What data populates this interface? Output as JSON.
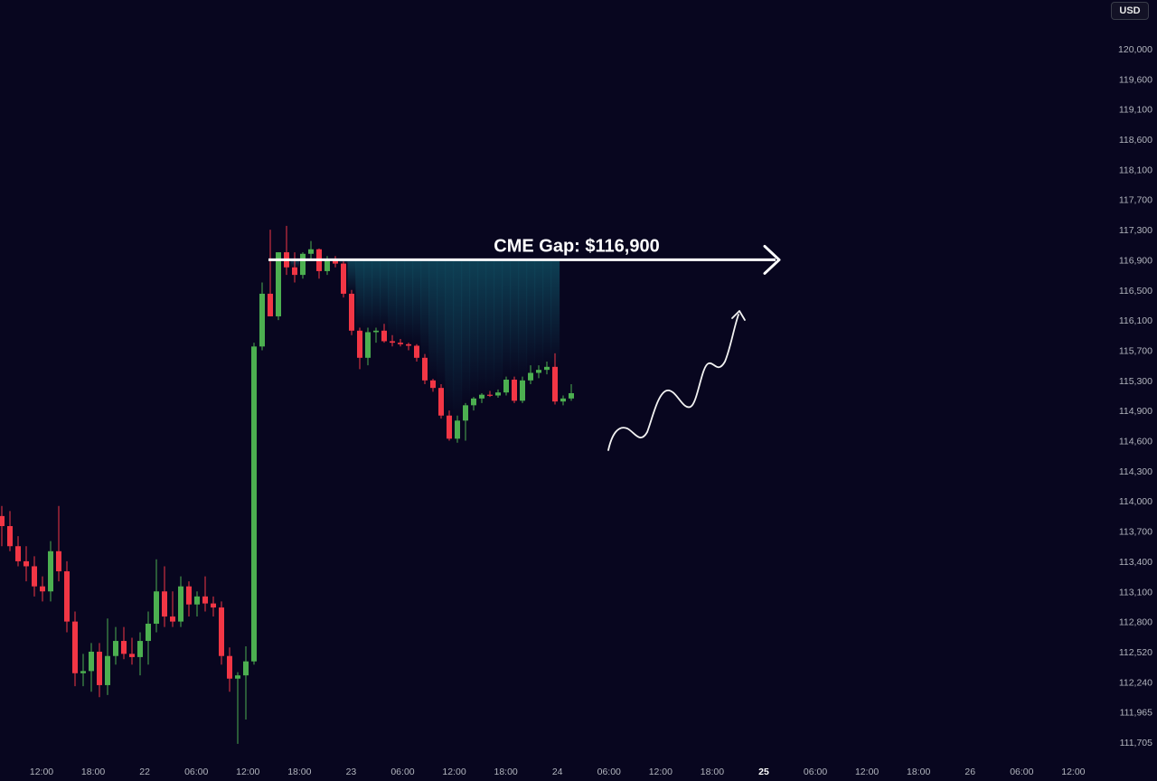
{
  "currency": "USD",
  "colors": {
    "background": "#08061f",
    "bullish": "#4caf50",
    "bearish": "#f23645",
    "axis_text": "#b2b5be",
    "annotation": "#ffffff",
    "gap_fill": "#0f4a5e"
  },
  "chart_data": {
    "type": "candlestick",
    "title": "",
    "price_axis": {
      "ticks": [
        "120,000",
        "119,600",
        "119,100",
        "118,600",
        "118,100",
        "117,700",
        "117,300",
        "116,900",
        "116,500",
        "116,100",
        "115,700",
        "115,300",
        "114,900",
        "114,600",
        "114,300",
        "114,000",
        "113,700",
        "113,400",
        "113,100",
        "112,800",
        "112,520",
        "112,240",
        "111,965",
        "111,705"
      ]
    },
    "time_axis": {
      "ticks": [
        "12:00",
        "18:00",
        "22",
        "06:00",
        "12:00",
        "18:00",
        "23",
        "06:00",
        "12:00",
        "18:00",
        "24",
        "06:00",
        "12:00",
        "18:00",
        "25",
        "06:00",
        "12:00",
        "18:00",
        "26",
        "06:00",
        "12:00"
      ],
      "bold_ticks": [
        "25"
      ]
    },
    "candles": [
      {
        "o": 113850,
        "h": 113950,
        "l": 113550,
        "c": 113750
      },
      {
        "o": 113750,
        "h": 113900,
        "l": 113500,
        "c": 113550
      },
      {
        "o": 113550,
        "h": 113650,
        "l": 113350,
        "c": 113400
      },
      {
        "o": 113400,
        "h": 113550,
        "l": 113200,
        "c": 113350
      },
      {
        "o": 113350,
        "h": 113450,
        "l": 113050,
        "c": 113150
      },
      {
        "o": 113150,
        "h": 113250,
        "l": 113000,
        "c": 113100
      },
      {
        "o": 113100,
        "h": 113600,
        "l": 113000,
        "c": 113500
      },
      {
        "o": 113500,
        "h": 113950,
        "l": 113200,
        "c": 113300
      },
      {
        "o": 113300,
        "h": 113400,
        "l": 112700,
        "c": 112800
      },
      {
        "o": 112800,
        "h": 112900,
        "l": 112200,
        "c": 112320
      },
      {
        "o": 112320,
        "h": 112500,
        "l": 112200,
        "c": 112340
      },
      {
        "o": 112340,
        "h": 112600,
        "l": 112150,
        "c": 112520
      },
      {
        "o": 112520,
        "h": 112600,
        "l": 112100,
        "c": 112210
      },
      {
        "o": 112210,
        "h": 112830,
        "l": 112120,
        "c": 112480
      },
      {
        "o": 112480,
        "h": 112750,
        "l": 112400,
        "c": 112620
      },
      {
        "o": 112620,
        "h": 112750,
        "l": 112450,
        "c": 112500
      },
      {
        "o": 112500,
        "h": 112650,
        "l": 112400,
        "c": 112470
      },
      {
        "o": 112470,
        "h": 112700,
        "l": 112300,
        "c": 112620
      },
      {
        "o": 112620,
        "h": 112900,
        "l": 112400,
        "c": 112780
      },
      {
        "o": 112780,
        "h": 113420,
        "l": 112700,
        "c": 113100
      },
      {
        "o": 113100,
        "h": 113350,
        "l": 112750,
        "c": 112850
      },
      {
        "o": 112850,
        "h": 113100,
        "l": 112750,
        "c": 112800
      },
      {
        "o": 112800,
        "h": 113250,
        "l": 112750,
        "c": 113150
      },
      {
        "o": 113150,
        "h": 113200,
        "l": 112850,
        "c": 112970
      },
      {
        "o": 112970,
        "h": 113100,
        "l": 112850,
        "c": 113050
      },
      {
        "o": 113050,
        "h": 113250,
        "l": 112900,
        "c": 112980
      },
      {
        "o": 112980,
        "h": 113050,
        "l": 112850,
        "c": 112940
      },
      {
        "o": 112940,
        "h": 113000,
        "l": 112400,
        "c": 112480
      },
      {
        "o": 112480,
        "h": 112560,
        "l": 112150,
        "c": 112270
      },
      {
        "o": 112270,
        "h": 112330,
        "l": 111690,
        "c": 112300
      },
      {
        "o": 112300,
        "h": 112570,
        "l": 111900,
        "c": 112430
      },
      {
        "o": 112430,
        "h": 115800,
        "l": 112400,
        "c": 115750
      },
      {
        "o": 115750,
        "h": 116600,
        "l": 115700,
        "c": 116450
      },
      {
        "o": 116450,
        "h": 117300,
        "l": 116150,
        "c": 116150
      },
      {
        "o": 116150,
        "h": 117000,
        "l": 116100,
        "c": 117000
      },
      {
        "o": 117000,
        "h": 117350,
        "l": 116700,
        "c": 116800
      },
      {
        "o": 116800,
        "h": 117000,
        "l": 116600,
        "c": 116700
      },
      {
        "o": 116700,
        "h": 117000,
        "l": 116650,
        "c": 116980
      },
      {
        "o": 116980,
        "h": 117150,
        "l": 116900,
        "c": 117040
      },
      {
        "o": 117040,
        "h": 117050,
        "l": 116650,
        "c": 116750
      },
      {
        "o": 116750,
        "h": 116950,
        "l": 116700,
        "c": 116900
      },
      {
        "o": 116900,
        "h": 116950,
        "l": 116800,
        "c": 116850
      },
      {
        "o": 116850,
        "h": 116880,
        "l": 116400,
        "c": 116450
      },
      {
        "o": 116450,
        "h": 116500,
        "l": 115900,
        "c": 115960
      },
      {
        "o": 115960,
        "h": 116000,
        "l": 115450,
        "c": 115600
      },
      {
        "o": 115600,
        "h": 116000,
        "l": 115500,
        "c": 115940
      },
      {
        "o": 115940,
        "h": 116000,
        "l": 115800,
        "c": 115960
      },
      {
        "o": 115960,
        "h": 116050,
        "l": 115800,
        "c": 115820
      },
      {
        "o": 115820,
        "h": 115900,
        "l": 115750,
        "c": 115800
      },
      {
        "o": 115800,
        "h": 115850,
        "l": 115750,
        "c": 115780
      },
      {
        "o": 115780,
        "h": 115800,
        "l": 115700,
        "c": 115760
      },
      {
        "o": 115760,
        "h": 115780,
        "l": 115550,
        "c": 115600
      },
      {
        "o": 115600,
        "h": 115650,
        "l": 115250,
        "c": 115300
      },
      {
        "o": 115300,
        "h": 115320,
        "l": 115150,
        "c": 115200
      },
      {
        "o": 115200,
        "h": 115250,
        "l": 114820,
        "c": 114850
      },
      {
        "o": 114850,
        "h": 114900,
        "l": 114600,
        "c": 114620
      },
      {
        "o": 114620,
        "h": 114850,
        "l": 114580,
        "c": 114800
      },
      {
        "o": 114800,
        "h": 115000,
        "l": 114600,
        "c": 114970
      },
      {
        "o": 114970,
        "h": 115080,
        "l": 114900,
        "c": 115060
      },
      {
        "o": 115060,
        "h": 115130,
        "l": 115000,
        "c": 115110
      },
      {
        "o": 115110,
        "h": 115160,
        "l": 115080,
        "c": 115100
      },
      {
        "o": 115100,
        "h": 115180,
        "l": 115070,
        "c": 115140
      },
      {
        "o": 115140,
        "h": 115350,
        "l": 115100,
        "c": 115310
      },
      {
        "o": 115310,
        "h": 115350,
        "l": 115000,
        "c": 115030
      },
      {
        "o": 115030,
        "h": 115350,
        "l": 115000,
        "c": 115300
      },
      {
        "o": 115300,
        "h": 115500,
        "l": 115250,
        "c": 115400
      },
      {
        "o": 115400,
        "h": 115500,
        "l": 115330,
        "c": 115440
      },
      {
        "o": 115440,
        "h": 115550,
        "l": 115380,
        "c": 115480
      },
      {
        "o": 115480,
        "h": 115660,
        "l": 114980,
        "c": 115020
      },
      {
        "o": 115020,
        "h": 115100,
        "l": 114970,
        "c": 115060
      },
      {
        "o": 115060,
        "h": 115250,
        "l": 115030,
        "c": 115130
      }
    ],
    "annotation": {
      "label": "CME Gap: $116,900",
      "level": 116900
    }
  }
}
